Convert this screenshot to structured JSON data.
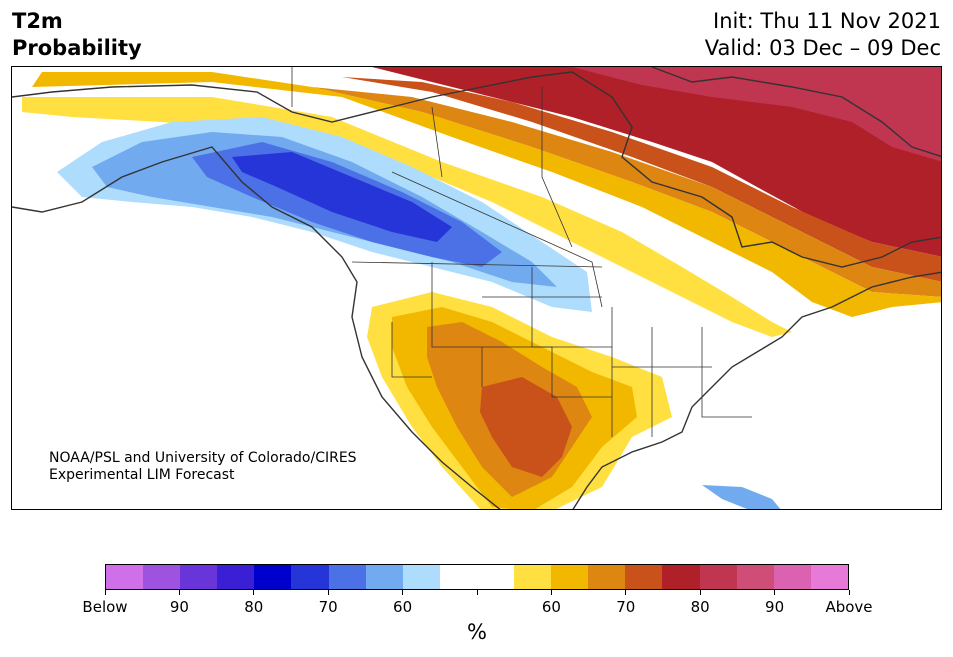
{
  "header": {
    "title_line1": "T2m",
    "title_line2": "Probability",
    "init": "Init: Thu 11 Nov 2021",
    "valid": "Valid: 03 Dec – 09 Dec"
  },
  "credit": {
    "line1": "NOAA/PSL and University of Colorado/CIRES",
    "line2": "Experimental LIM Forecast"
  },
  "colorbar": {
    "colors": [
      "#d070e8",
      "#9e52e0",
      "#6a35d8",
      "#3a1fd4",
      "#0000cc",
      "#2535d8",
      "#4c70e6",
      "#72aaf0",
      "#addcfc",
      "#ffffff",
      "#ffffff",
      "#ffe040",
      "#f2b800",
      "#de8612",
      "#c8521a",
      "#b02028",
      "#c03550",
      "#cf4e78",
      "#db62b0",
      "#e77ad8"
    ],
    "labels": [
      "Below",
      "90",
      "80",
      "70",
      "60",
      "",
      "60",
      "70",
      "80",
      "90",
      "Above"
    ],
    "unit": "%"
  },
  "legend_semantics": {
    "below": "Probability of below-normal temperature",
    "above": "Probability of above-normal temperature"
  }
}
